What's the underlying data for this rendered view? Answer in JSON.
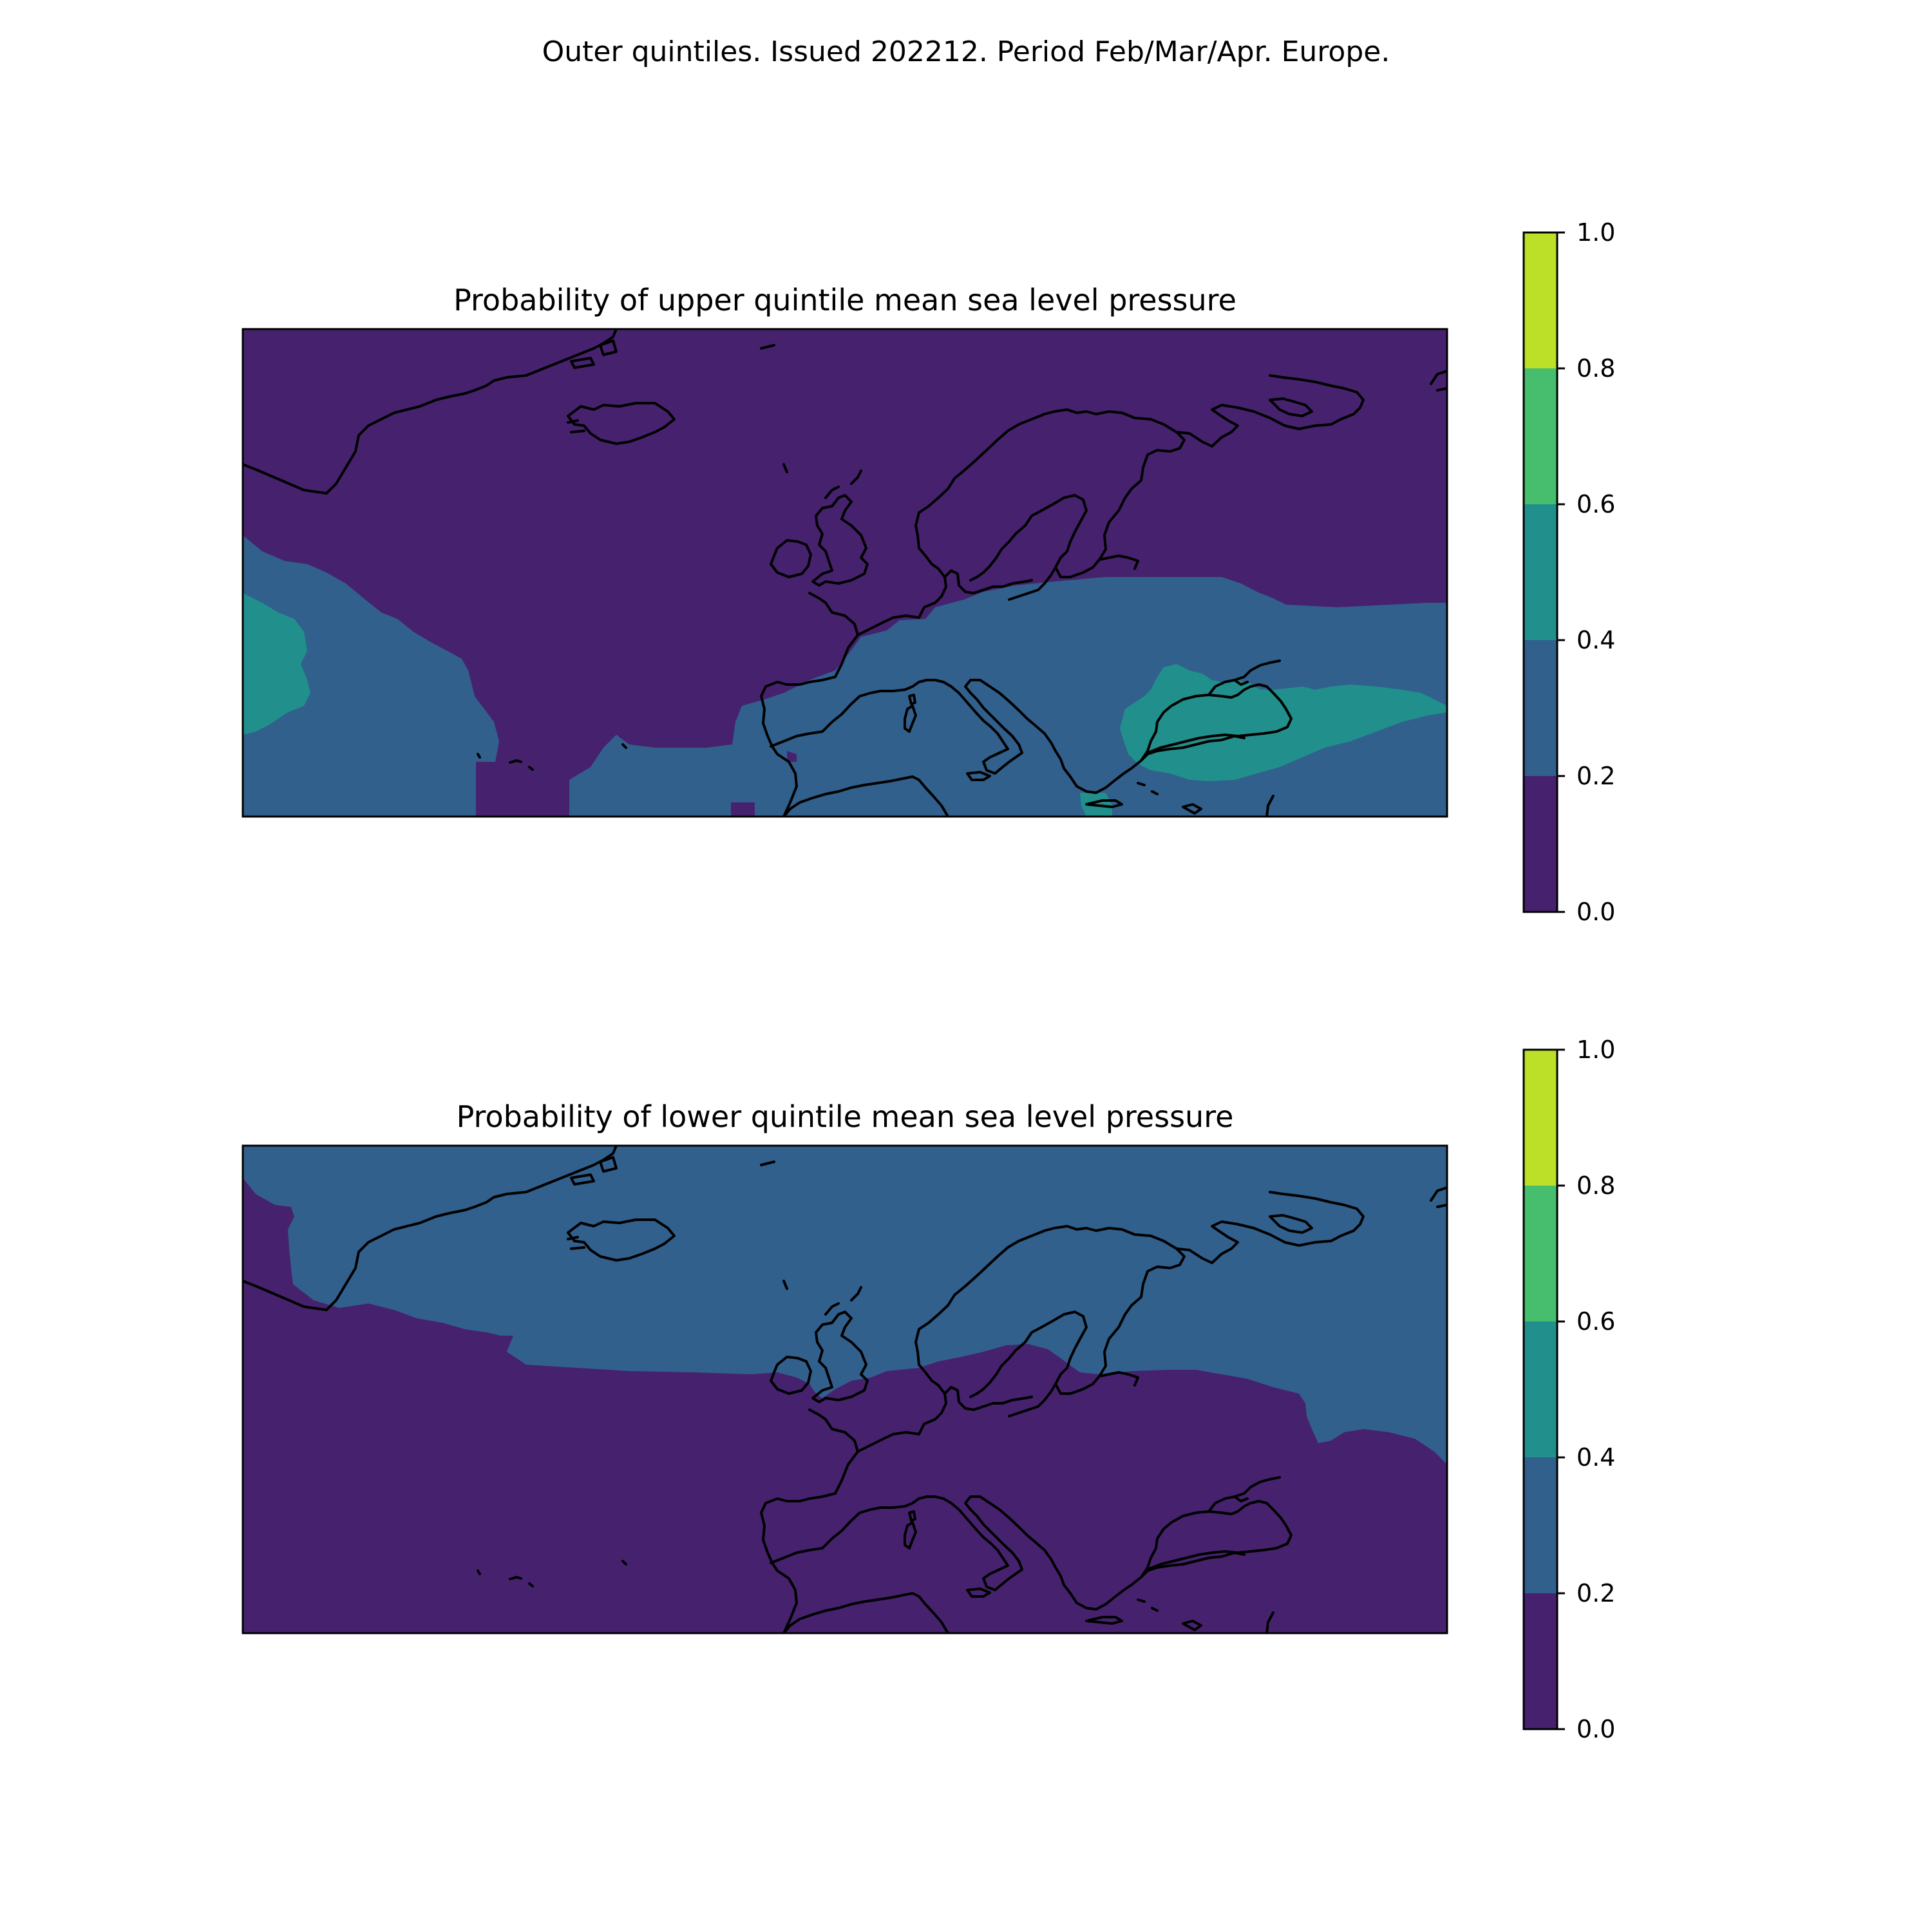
{
  "figure": {
    "suptitle": "Outer quintiles. Issued 202212. Period Feb/Mar/Apr. Europe."
  },
  "colors": {
    "level_0_0.2": "#46226e",
    "level_0.2_0.4": "#31608d",
    "level_0.4_0.6": "#21908c",
    "level_0.6_0.8": "#46be6e",
    "level_0.8_1.0": "#bcdf27"
  },
  "chart_data": [
    {
      "type": "heatmap",
      "title": "Probability of upper quintile mean sea level pressure",
      "region": "Europe",
      "colorbar": {
        "ticks": [
          "0.0",
          "0.2",
          "0.4",
          "0.6",
          "0.8",
          "1.0"
        ],
        "levels": [
          0.0,
          0.2,
          0.4,
          0.6,
          0.8,
          1.0
        ]
      },
      "regions_by_level": [
        {
          "range": [
            0.0,
            0.2
          ],
          "area": "North Atlantic, Greenland, Iceland, British Isles, Scandinavia, northern Russia, central Atlantic"
        },
        {
          "range": [
            0.2,
            0.4
          ],
          "area": "Western Atlantic, central and southern Europe, Mediterranean, eastern Europe"
        },
        {
          "range": [
            0.4,
            0.6
          ],
          "area": "Far western Atlantic, Balkans, Black Sea, eastern Mediterranean"
        }
      ]
    },
    {
      "type": "heatmap",
      "title": "Probability of lower quintile mean sea level pressure",
      "region": "Europe",
      "colorbar": {
        "ticks": [
          "0.0",
          "0.2",
          "0.4",
          "0.6",
          "0.8",
          "1.0"
        ],
        "levels": [
          0.0,
          0.2,
          0.4,
          0.6,
          0.8,
          1.0
        ]
      },
      "regions_by_level": [
        {
          "range": [
            0.0,
            0.2
          ],
          "area": "Southern Atlantic, western Europe, Mediterranean, eastern Europe, Greenland west coast"
        },
        {
          "range": [
            0.2,
            0.4
          ],
          "area": "North Atlantic, Iceland, Scandinavia, northern Russia"
        }
      ]
    }
  ]
}
